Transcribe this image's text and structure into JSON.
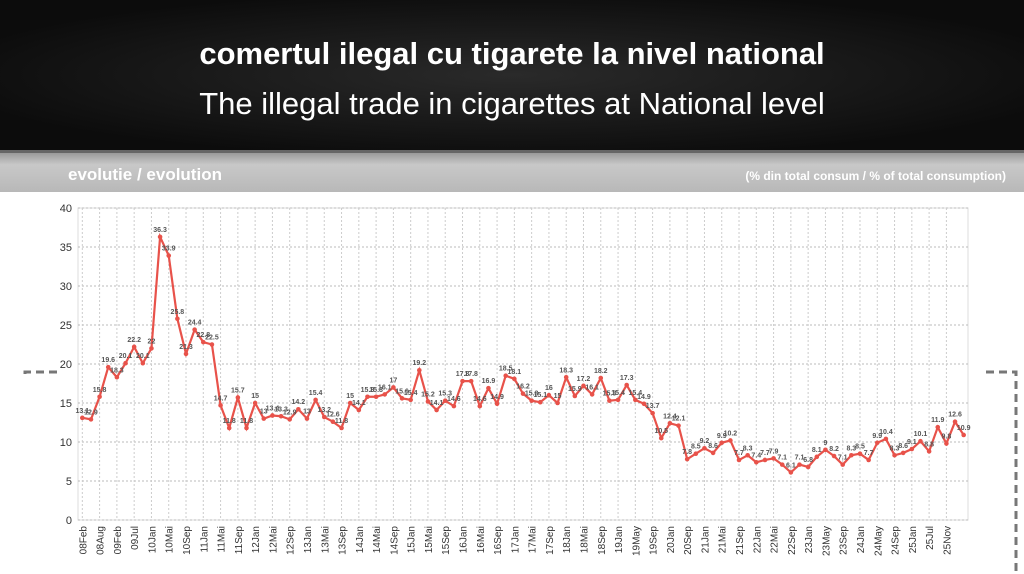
{
  "chart_data": {
    "type": "line",
    "title": "comertul ilegal cu tigarete la nivel national",
    "subtitle": "The illegal trade in cigarettes at National level",
    "section_title": "evolutie / evolution",
    "y_label": "(% din total consum / % of total consumption)",
    "categories": [
      "08Feb",
      null,
      "08Aug",
      null,
      "09Feb",
      null,
      "09Jul",
      null,
      "10Jan",
      null,
      "10Mai",
      null,
      "10Sep",
      null,
      "11Jan",
      null,
      "11Mai",
      null,
      "11Sep",
      null,
      "12Jan",
      null,
      "12Mai",
      null,
      "12Sep",
      null,
      "13Jan",
      null,
      "13Mai",
      null,
      "13Sep",
      null,
      "14Jan",
      null,
      "14Mai",
      null,
      "14Sep",
      null,
      "15Jan",
      null,
      "15Mai",
      null,
      "15Sep",
      null,
      "16Jan",
      null,
      "16Mai",
      null,
      "16Sep",
      null,
      "17Jan",
      null,
      "17Mai",
      null,
      "17Sep",
      null,
      "18Jan",
      null,
      "18Mai",
      null,
      "18Sep",
      null,
      "19Jan",
      null,
      "19May",
      null,
      "19Sep",
      null,
      "20Jan",
      null,
      "20Sep",
      null,
      "21Jan",
      null,
      "21Mai",
      null,
      "21Sep",
      null,
      "22Jan",
      null,
      "22Mai",
      null,
      "22Sep",
      null,
      "23Jan",
      null,
      "23May",
      null,
      "23Sep",
      null,
      "24Jan",
      null,
      "24May",
      null,
      "24Sep",
      null,
      "25Jan",
      null,
      "25Jul",
      null,
      "25Nov",
      null,
      null
    ],
    "series": [
      {
        "name": "illegal trade",
        "color": "#e8524a",
        "values": [
          13.1,
          12.9,
          15.8,
          19.6,
          18.3,
          20.1,
          22.2,
          20.1,
          22.0,
          36.3,
          33.9,
          25.8,
          21.3,
          24.4,
          22.8,
          22.5,
          14.7,
          11.8,
          15.7,
          11.8,
          15.0,
          13.0,
          13.4,
          13.3,
          12.9,
          14.2,
          13.0,
          15.4,
          13.2,
          12.6,
          11.8,
          15.0,
          14.1,
          15.8,
          15.8,
          16.1,
          17.0,
          15.6,
          15.4,
          19.2,
          15.2,
          14.1,
          15.3,
          14.6,
          17.8,
          17.8,
          14.6,
          16.9,
          14.9,
          18.5,
          18.1,
          16.2,
          15.3,
          15.1,
          16.0,
          15.0,
          18.3,
          15.9,
          17.2,
          16.1,
          18.2,
          15.3,
          15.4,
          17.3,
          15.4,
          14.9,
          13.7,
          10.5,
          12.4,
          12.1,
          7.8,
          8.5,
          9.2,
          8.6,
          9.9,
          10.2,
          7.7,
          8.3,
          7.4,
          7.7,
          7.9,
          7.1,
          6.1,
          7.1,
          6.8,
          8.1,
          9.0,
          8.2,
          7.1,
          8.3,
          8.5,
          7.7,
          9.9,
          10.4,
          8.3,
          8.6,
          9.1,
          10.1,
          8.8,
          11.9,
          9.8,
          12.6,
          10.9
        ]
      }
    ],
    "ylim": [
      0,
      40
    ],
    "yticks": [
      0,
      5,
      10,
      15,
      20,
      25,
      30,
      35,
      40
    ],
    "grid": true
  }
}
